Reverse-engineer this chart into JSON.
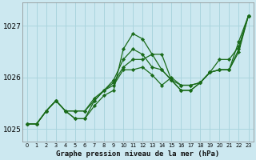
{
  "title": "Graphe pression niveau de la mer (hPa)",
  "bg_color": "#cce8f0",
  "grid_color": "#aad4de",
  "line_color": "#1a6b1a",
  "marker_color": "#1a6b1a",
  "xlim": [
    -0.5,
    23.5
  ],
  "ylim": [
    1024.75,
    1027.45
  ],
  "yticks": [
    1025,
    1026,
    1027
  ],
  "xtick_labels": [
    "0",
    "1",
    "2",
    "3",
    "4",
    "5",
    "6",
    "7",
    "8",
    "9",
    "10",
    "11",
    "12",
    "13",
    "14",
    "15",
    "16",
    "17",
    "18",
    "19",
    "20",
    "21",
    "22",
    "23"
  ],
  "series": [
    [
      1025.1,
      1025.1,
      1025.35,
      1025.55,
      1025.35,
      1025.35,
      1025.35,
      1025.55,
      1025.75,
      1025.85,
      1026.15,
      1026.15,
      1026.2,
      1026.05,
      1025.85,
      1026.0,
      1025.85,
      1025.85,
      1025.9,
      1026.1,
      1026.15,
      1026.15,
      1026.5,
      1027.2
    ],
    [
      1025.1,
      1025.1,
      1025.35,
      1025.55,
      1025.35,
      1025.35,
      1025.35,
      1025.6,
      1025.75,
      1025.9,
      1026.2,
      1026.35,
      1026.35,
      1026.45,
      1026.15,
      1025.95,
      1025.85,
      1025.85,
      1025.9,
      1026.1,
      1026.35,
      1026.35,
      1026.6,
      1027.2
    ],
    [
      1025.1,
      1025.1,
      1025.35,
      1025.55,
      1025.35,
      1025.2,
      1025.2,
      1025.55,
      1025.75,
      1025.95,
      1026.35,
      1026.55,
      1026.45,
      1026.2,
      1026.15,
      1025.95,
      1025.75,
      1025.75,
      1025.9,
      1026.1,
      1026.15,
      1026.15,
      1026.7,
      1027.2
    ],
    [
      1025.1,
      1025.1,
      1025.35,
      1025.55,
      1025.35,
      1025.2,
      1025.2,
      1025.45,
      1025.65,
      1025.75,
      1026.55,
      1026.85,
      1026.75,
      1026.45,
      1026.45,
      1025.95,
      1025.75,
      1025.75,
      1025.9,
      1026.1,
      1026.15,
      1026.15,
      1026.55,
      1027.2
    ]
  ]
}
